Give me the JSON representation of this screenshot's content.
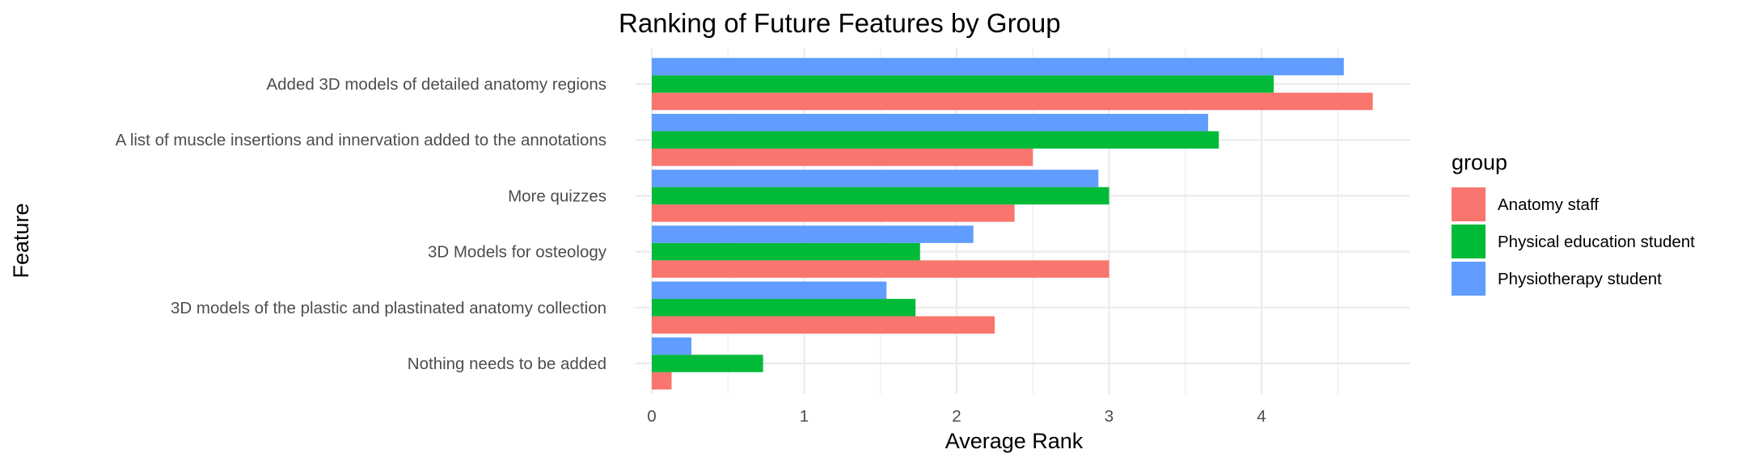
{
  "chart_data": {
    "type": "bar",
    "orientation": "horizontal",
    "title": "Ranking of Future Features by Group",
    "xlabel": "Average Rank",
    "ylabel": "Feature",
    "xlim": [
      0,
      5
    ],
    "x_ticks": [
      "0",
      "1",
      "2",
      "3",
      "4"
    ],
    "categories": [
      "Added 3D models of detailed anatomy regions",
      "A list of muscle insertions and innervation added to the annotations",
      "More quizzes",
      "3D Models for osteology",
      "3D models of the plastic and plastinated anatomy collection",
      "Nothing needs to be added"
    ],
    "legend_title": "group",
    "legend_position": "right",
    "grid": true,
    "series": [
      {
        "name": "Anatomy staff",
        "color": "#F8766D",
        "values": [
          4.73,
          2.5,
          2.38,
          3.0,
          2.25,
          0.13
        ]
      },
      {
        "name": "Physical education student",
        "color": "#00BA38",
        "values": [
          4.08,
          3.72,
          3.0,
          1.76,
          1.73,
          0.73
        ]
      },
      {
        "name": "Physiotherapy student",
        "color": "#619CFF",
        "values": [
          4.54,
          3.65,
          2.93,
          2.11,
          1.54,
          0.26
        ]
      }
    ]
  }
}
